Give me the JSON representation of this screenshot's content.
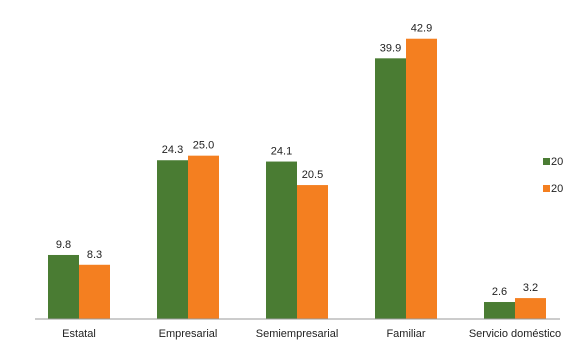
{
  "chart_data": {
    "type": "bar",
    "title": "",
    "xlabel": "",
    "ylabel": "",
    "categories": [
      "Estatal",
      "Empresarial",
      "Semiempresarial",
      "Familiar",
      "Servicio doméstico"
    ],
    "series": [
      {
        "name": "20",
        "color": "#4a7c33",
        "values": [
          9.8,
          24.3,
          24.1,
          39.9,
          2.6
        ]
      },
      {
        "name": "20",
        "color": "#f47f20",
        "values": [
          8.3,
          25.0,
          20.5,
          42.9,
          3.2
        ]
      }
    ],
    "ylim": [
      0,
      45
    ],
    "grid": false,
    "legend": "right"
  }
}
